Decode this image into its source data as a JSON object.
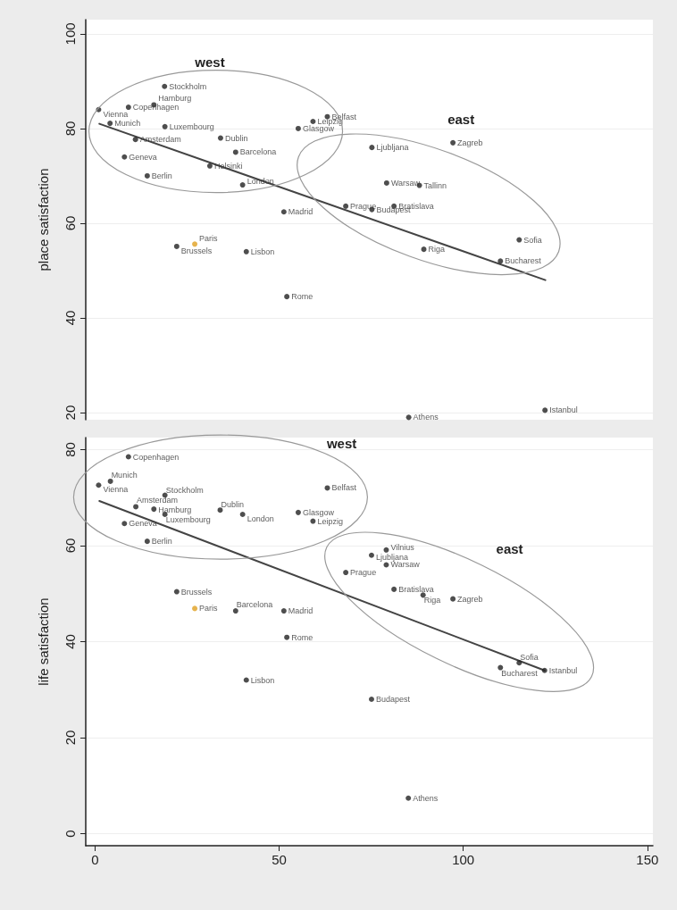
{
  "chart_data": [
    {
      "type": "scatter",
      "ylabel": "place satisfaction",
      "xlim": [
        -2.5,
        151.5
      ],
      "ylim": [
        18.5,
        103
      ],
      "xticks": [
        0,
        50,
        100,
        150
      ],
      "yticks": [
        20,
        40,
        60,
        80,
        100
      ],
      "grid": "y",
      "tick_labels": "y",
      "annotations": [
        "west",
        "east"
      ],
      "series": [
        {
          "x": [
            18.9,
            16.0,
            9.1,
            1.0,
            4.1,
            19.0,
            11.0,
            34.1,
            38.2,
            8.0,
            31.2,
            14.2,
            40.1,
            63.1,
            59.2,
            55.2,
            51.3,
            27.1,
            22.2,
            41.1,
            52.1,
            68.1,
            75.2,
            97.2,
            79.2,
            88.1,
            81.2,
            75.2,
            115.2,
            89.3,
            110.1,
            85.2,
            122.2
          ],
          "values": [
            88.9,
            85.0,
            84.5,
            84.0,
            81.1,
            80.4,
            77.7,
            78.0,
            75.0,
            74.0,
            72.1,
            70.0,
            68.1,
            82.5,
            81.5,
            80.0,
            62.4,
            55.6,
            55.1,
            54.0,
            44.5,
            63.6,
            76.0,
            77.0,
            68.5,
            68.0,
            63.6,
            62.9,
            56.5,
            54.5,
            52.0,
            19.0,
            20.5
          ],
          "colors": [
            "#222222",
            "#222222",
            "#222222",
            "#222222",
            "#222222",
            "#222222",
            "#222222",
            "#222222",
            "#222222",
            "#222222",
            "#222222",
            "#222222",
            "#222222",
            "#222222",
            "#222222",
            "#222222",
            "#222222",
            "#e0a020",
            "#222222",
            "#222222",
            "#222222",
            "#222222",
            "#222222",
            "#222222",
            "#222222",
            "#222222",
            "#222222",
            "#222222",
            "#222222",
            "#222222",
            "#222222",
            "#222222",
            "#222222"
          ],
          "value_labels": [
            "Stockholm",
            "Hamburg",
            "Copenhagen",
            "Vienna",
            "Munich",
            "Luxembourg",
            "Amsterdam",
            "Dublin",
            "Barcelona",
            "Geneva",
            "Helsinki",
            "Berlin",
            "London",
            "Belfast",
            "Leipzig",
            "Glasgow",
            "Madrid",
            "Paris",
            "Brussels",
            "Lisbon",
            "Rome",
            "Prague",
            "Ljubljana",
            "Zagreb",
            "Warsaw",
            "Tallinn",
            "Bratislava",
            "Budapest",
            "Sofia",
            "Riga",
            "Bucharest",
            "Athens",
            "Istanbul"
          ]
        },
        {
          "type": "line",
          "x": [
            1.2,
            122.3
          ],
          "values": [
            81.0,
            48.0
          ],
          "color": "#444444"
        }
      ]
    },
    {
      "type": "scatter",
      "ylabel": "life satisfaction",
      "xlim": [
        -2.5,
        151.5
      ],
      "ylim": [
        -2.5,
        82.5
      ],
      "xticks": [
        0,
        50,
        100,
        150
      ],
      "yticks": [
        0,
        20,
        40,
        60,
        80
      ],
      "grid": "y",
      "annotations": [
        "west",
        "east"
      ],
      "series": [
        {
          "x": [
            9.1,
            4.2,
            1.0,
            19.0,
            11.1,
            16.0,
            19.0,
            34.0,
            40.1,
            63.1,
            55.2,
            59.2,
            8.0,
            14.2,
            22.2,
            27.1,
            38.2,
            51.3,
            52.1,
            41.1,
            68.1,
            79.1,
            75.1,
            79.1,
            81.2,
            89.1,
            97.2,
            115.2,
            110.1,
            122.1,
            75.1,
            85.1
          ],
          "values": [
            78.5,
            73.4,
            72.6,
            70.5,
            68.1,
            67.6,
            66.5,
            67.4,
            66.5,
            72.0,
            66.9,
            65.1,
            64.6,
            60.9,
            50.4,
            46.9,
            46.4,
            46.4,
            40.9,
            32.0,
            54.4,
            59.1,
            58.0,
            56.0,
            50.9,
            49.7,
            48.9,
            35.6,
            34.6,
            34.0,
            28.0,
            7.4
          ],
          "colors": [
            "#222222",
            "#222222",
            "#222222",
            "#222222",
            "#222222",
            "#222222",
            "#222222",
            "#222222",
            "#222222",
            "#222222",
            "#222222",
            "#222222",
            "#222222",
            "#222222",
            "#222222",
            "#e0a020",
            "#222222",
            "#222222",
            "#222222",
            "#222222",
            "#222222",
            "#222222",
            "#222222",
            "#222222",
            "#222222",
            "#222222",
            "#222222",
            "#222222",
            "#222222",
            "#222222",
            "#222222",
            "#222222"
          ],
          "value_labels": [
            "Copenhagen",
            "Munich",
            "Vienna",
            "Stockholm",
            "Amsterdam",
            "Hamburg",
            "Luxembourg",
            "Dublin",
            "London",
            "Belfast",
            "Glasgow",
            "Leipzig",
            "Geneva",
            "Berlin",
            "Brussels",
            "Paris",
            "Barcelona",
            "Madrid",
            "Rome",
            "Lisbon",
            "Prague",
            "Vilnius",
            "Ljubljana",
            "Warsaw",
            "Bratislava",
            "Riga",
            "Zagreb",
            "Sofia",
            "Bucharest",
            "Istanbul",
            "Budapest",
            "Athens"
          ]
        },
        {
          "type": "line",
          "x": [
            1.2,
            122.1
          ],
          "values": [
            69.3,
            34.0
          ],
          "color": "#444444"
        }
      ]
    }
  ]
}
